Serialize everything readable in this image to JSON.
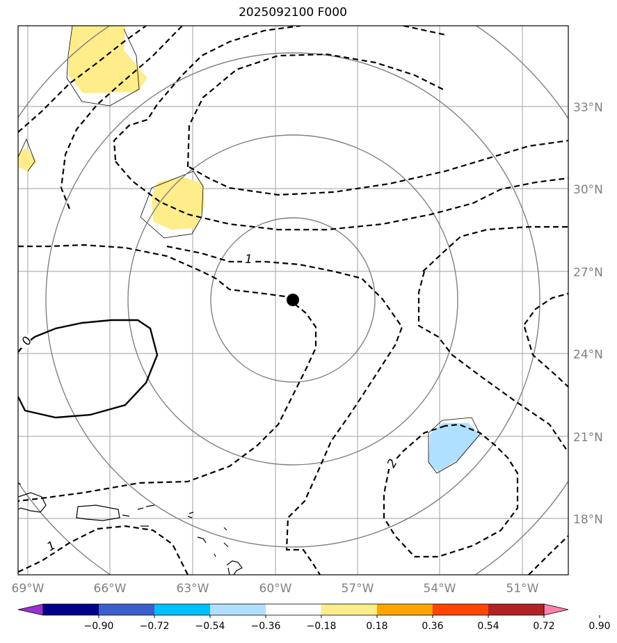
{
  "title": "2025092100 F000",
  "lat_labels": [
    "33°N",
    "30°N",
    "27°N",
    "24°N",
    "21°N",
    "18°N"
  ],
  "lon_labels": [
    "69°W",
    "66°W",
    "63°W",
    "60°W",
    "57°W",
    "54°W",
    "51°W"
  ],
  "contour_labels": [
    "1",
    "0",
    "2",
    "1"
  ],
  "colorbar": {
    "ticks": [
      "−0.90",
      "−0.72",
      "−0.54",
      "−0.36",
      "−0.18",
      "0.18",
      "0.36",
      "0.54",
      "0.72",
      "0.90"
    ],
    "colors": [
      "#9932cc",
      "#00008b",
      "#3a5fcd",
      "#00bfff",
      "#b0e0ff",
      "#ffffff",
      "#ffec8b",
      "#ffa500",
      "#ff4500",
      "#b22222",
      "#ff82ab"
    ]
  },
  "colors": {
    "positive_fill": "#ffec8b",
    "negative_fill": "#b0e0ff",
    "range_rings": "#808080",
    "gridlines": "#b0b0b0"
  }
}
